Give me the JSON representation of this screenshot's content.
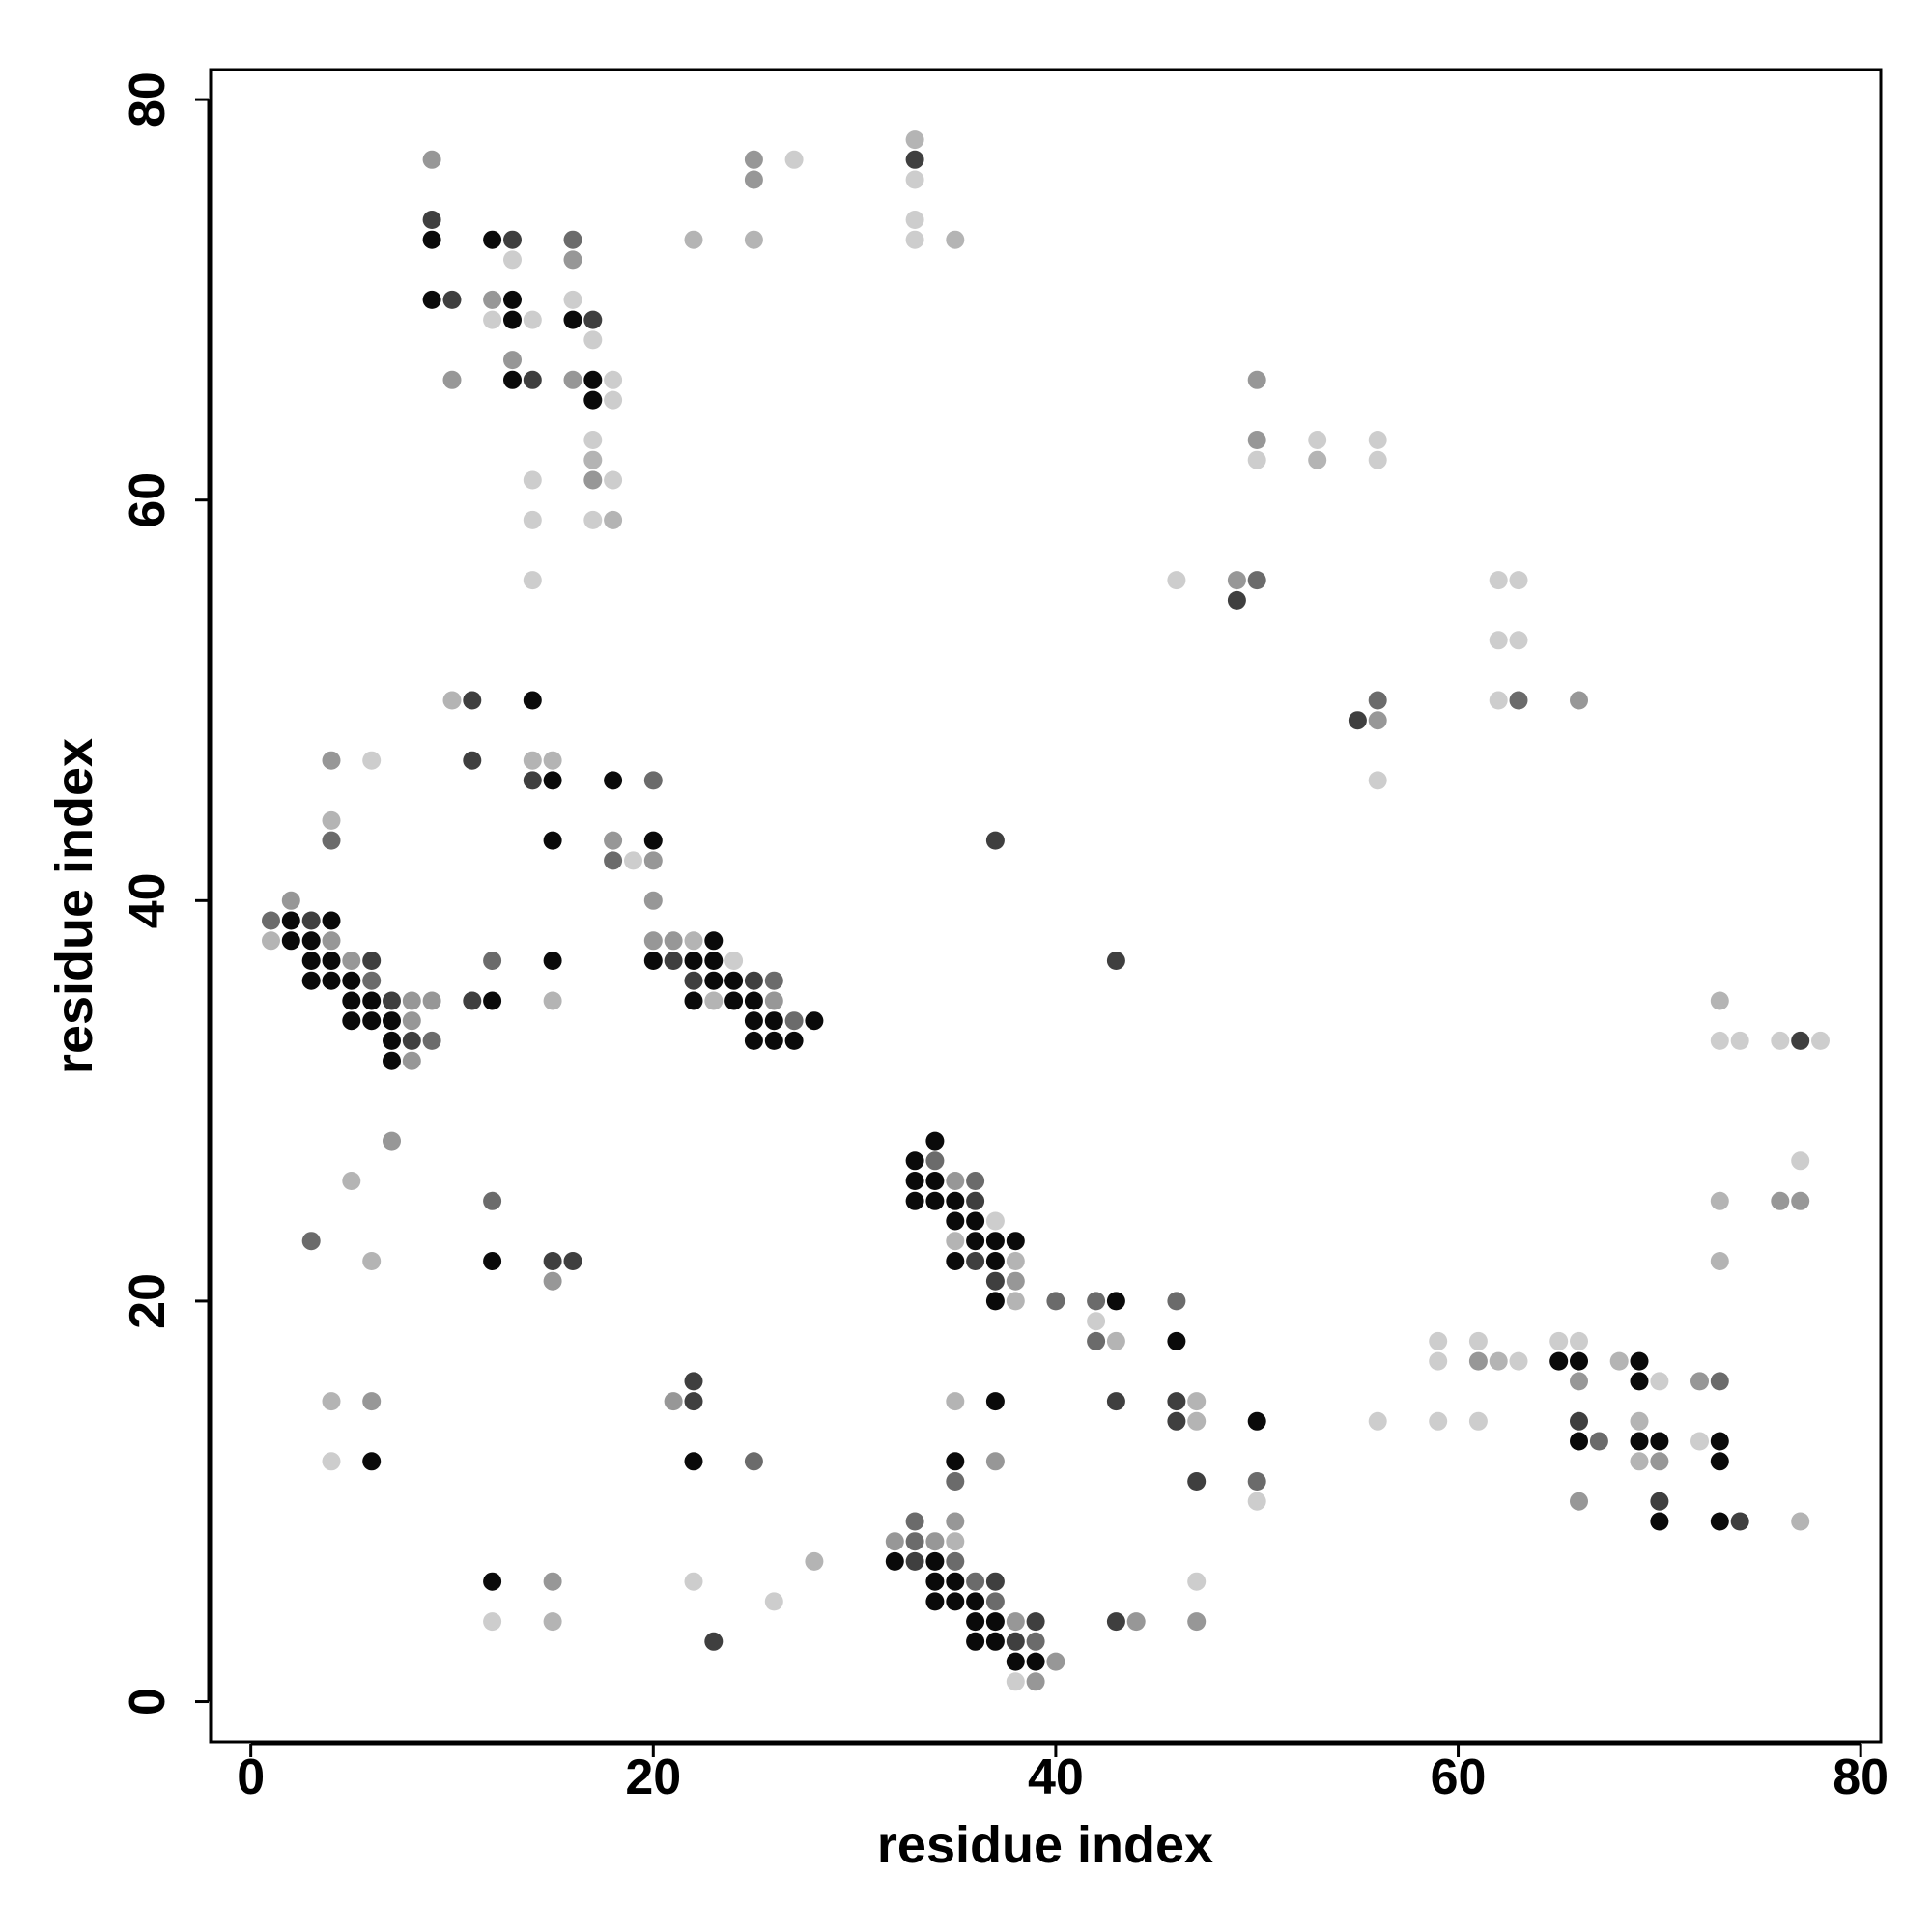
{
  "chart_data": {
    "type": "scatter",
    "title": "",
    "xlabel": "residue index",
    "ylabel": "residue index",
    "xlim": [
      -2,
      81
    ],
    "ylim": [
      -2,
      81.5
    ],
    "xticks": [
      "0",
      "20",
      "40",
      "60",
      "80"
    ],
    "yticks": [
      "0",
      "20",
      "40",
      "60",
      "80"
    ],
    "grid": false,
    "legend": "none",
    "colors": {
      "black": "#0a0a0a",
      "dark": "#3f3f3f",
      "mid": "#6b6b6b",
      "gray": "#979797",
      "light": "#b4b4b4",
      "lighter": "#cdcdcd"
    },
    "points": [
      [
        9,
        77,
        "gray"
      ],
      [
        9,
        74,
        "dark"
      ],
      [
        9,
        73,
        "black"
      ],
      [
        9,
        70,
        "black"
      ],
      [
        10,
        70,
        "dark"
      ],
      [
        10,
        66,
        "gray"
      ],
      [
        12,
        73,
        "black"
      ],
      [
        13,
        73,
        "dark"
      ],
      [
        13,
        72,
        "lighter"
      ],
      [
        12,
        70,
        "gray"
      ],
      [
        13,
        70,
        "black"
      ],
      [
        12,
        69,
        "lighter"
      ],
      [
        13,
        69,
        "black"
      ],
      [
        14,
        69,
        "lighter"
      ],
      [
        13,
        67,
        "gray"
      ],
      [
        13,
        66,
        "black"
      ],
      [
        14,
        66,
        "dark"
      ],
      [
        14,
        61,
        "lighter"
      ],
      [
        14,
        59,
        "lighter"
      ],
      [
        14,
        56,
        "lighter"
      ],
      [
        16,
        73,
        "mid"
      ],
      [
        16,
        72,
        "gray"
      ],
      [
        16,
        70,
        "lighter"
      ],
      [
        16,
        69,
        "black"
      ],
      [
        17,
        69,
        "dark"
      ],
      [
        17,
        68,
        "lighter"
      ],
      [
        16,
        66,
        "gray"
      ],
      [
        17,
        66,
        "black"
      ],
      [
        18,
        66,
        "lighter"
      ],
      [
        17,
        65,
        "black"
      ],
      [
        18,
        65,
        "lighter"
      ],
      [
        17,
        63,
        "lighter"
      ],
      [
        17,
        62,
        "light"
      ],
      [
        17,
        61,
        "gray"
      ],
      [
        18,
        61,
        "lighter"
      ],
      [
        17,
        59,
        "lighter"
      ],
      [
        18,
        59,
        "light"
      ],
      [
        25,
        77,
        "gray"
      ],
      [
        27,
        77,
        "lighter"
      ],
      [
        25,
        76,
        "gray"
      ],
      [
        22,
        73,
        "light"
      ],
      [
        25,
        73,
        "light"
      ],
      [
        33,
        78,
        "light"
      ],
      [
        33,
        77,
        "dark"
      ],
      [
        33,
        76,
        "lighter"
      ],
      [
        33,
        74,
        "lighter"
      ],
      [
        33,
        73,
        "lighter"
      ],
      [
        35,
        73,
        "light"
      ],
      [
        50,
        66,
        "gray"
      ],
      [
        50,
        63,
        "gray"
      ],
      [
        53,
        63,
        "lighter"
      ],
      [
        56,
        63,
        "lighter"
      ],
      [
        50,
        62,
        "lighter"
      ],
      [
        53,
        62,
        "light"
      ],
      [
        56,
        62,
        "lighter"
      ],
      [
        46,
        56,
        "lighter"
      ],
      [
        49,
        56,
        "gray"
      ],
      [
        50,
        56,
        "mid"
      ],
      [
        49,
        55,
        "dark"
      ],
      [
        62,
        56,
        "lighter"
      ],
      [
        63,
        56,
        "lighter"
      ],
      [
        62,
        53,
        "lighter"
      ],
      [
        63,
        53,
        "lighter"
      ],
      [
        62,
        50,
        "lighter"
      ],
      [
        63,
        50,
        "mid"
      ],
      [
        66,
        50,
        "gray"
      ],
      [
        55,
        49,
        "dark"
      ],
      [
        56,
        49,
        "gray"
      ],
      [
        56,
        50,
        "mid"
      ],
      [
        56,
        46,
        "lighter"
      ],
      [
        10,
        50,
        "light"
      ],
      [
        11,
        50,
        "dark"
      ],
      [
        14,
        50,
        "black"
      ],
      [
        11,
        47,
        "dark"
      ],
      [
        14,
        47,
        "light"
      ],
      [
        15,
        47,
        "light"
      ],
      [
        14,
        46,
        "dark"
      ],
      [
        15,
        46,
        "black"
      ],
      [
        15,
        43,
        "black"
      ],
      [
        18,
        46,
        "black"
      ],
      [
        20,
        46,
        "mid"
      ],
      [
        18,
        43,
        "gray"
      ],
      [
        20,
        43,
        "black"
      ],
      [
        18,
        42,
        "mid"
      ],
      [
        19,
        42,
        "lighter"
      ],
      [
        20,
        42,
        "gray"
      ],
      [
        20,
        40,
        "gray"
      ],
      [
        37,
        43,
        "dark"
      ],
      [
        4,
        47,
        "gray"
      ],
      [
        6,
        47,
        "lighter"
      ],
      [
        4,
        44,
        "light"
      ],
      [
        4,
        43,
        "mid"
      ],
      [
        2,
        40,
        "gray"
      ],
      [
        1,
        39,
        "mid"
      ],
      [
        2,
        39,
        "black"
      ],
      [
        3,
        39,
        "dark"
      ],
      [
        4,
        39,
        "black"
      ],
      [
        1,
        38,
        "light"
      ],
      [
        2,
        38,
        "black"
      ],
      [
        3,
        38,
        "black"
      ],
      [
        4,
        38,
        "gray"
      ],
      [
        3,
        37,
        "black"
      ],
      [
        4,
        37,
        "black"
      ],
      [
        5,
        37,
        "gray"
      ],
      [
        6,
        37,
        "dark"
      ],
      [
        3,
        36,
        "black"
      ],
      [
        4,
        36,
        "black"
      ],
      [
        5,
        36,
        "black"
      ],
      [
        6,
        36,
        "mid"
      ],
      [
        5,
        35,
        "black"
      ],
      [
        6,
        35,
        "black"
      ],
      [
        7,
        35,
        "dark"
      ],
      [
        8,
        35,
        "gray"
      ],
      [
        9,
        35,
        "gray"
      ],
      [
        5,
        34,
        "black"
      ],
      [
        6,
        34,
        "black"
      ],
      [
        7,
        34,
        "black"
      ],
      [
        8,
        34,
        "gray"
      ],
      [
        7,
        33,
        "black"
      ],
      [
        8,
        33,
        "dark"
      ],
      [
        9,
        33,
        "mid"
      ],
      [
        7,
        32,
        "black"
      ],
      [
        8,
        32,
        "gray"
      ],
      [
        12,
        37,
        "mid"
      ],
      [
        11,
        35,
        "dark"
      ],
      [
        12,
        35,
        "black"
      ],
      [
        15,
        37,
        "black"
      ],
      [
        15,
        35,
        "light"
      ],
      [
        20,
        38,
        "gray"
      ],
      [
        21,
        38,
        "gray"
      ],
      [
        22,
        38,
        "light"
      ],
      [
        23,
        38,
        "black"
      ],
      [
        20,
        37,
        "black"
      ],
      [
        21,
        37,
        "dark"
      ],
      [
        22,
        37,
        "black"
      ],
      [
        23,
        37,
        "black"
      ],
      [
        24,
        37,
        "lighter"
      ],
      [
        22,
        36,
        "dark"
      ],
      [
        23,
        36,
        "black"
      ],
      [
        24,
        36,
        "black"
      ],
      [
        25,
        36,
        "dark"
      ],
      [
        26,
        36,
        "mid"
      ],
      [
        22,
        35,
        "black"
      ],
      [
        23,
        35,
        "light"
      ],
      [
        24,
        35,
        "black"
      ],
      [
        25,
        35,
        "black"
      ],
      [
        26,
        35,
        "gray"
      ],
      [
        25,
        34,
        "black"
      ],
      [
        26,
        34,
        "black"
      ],
      [
        27,
        34,
        "mid"
      ],
      [
        28,
        34,
        "black"
      ],
      [
        25,
        33,
        "black"
      ],
      [
        26,
        33,
        "black"
      ],
      [
        27,
        33,
        "black"
      ],
      [
        7,
        28,
        "gray"
      ],
      [
        5,
        26,
        "light"
      ],
      [
        3,
        23,
        "mid"
      ],
      [
        6,
        22,
        "light"
      ],
      [
        12,
        25,
        "mid"
      ],
      [
        12,
        22,
        "black"
      ],
      [
        15,
        22,
        "dark"
      ],
      [
        16,
        22,
        "dark"
      ],
      [
        15,
        21,
        "gray"
      ],
      [
        34,
        28,
        "black"
      ],
      [
        33,
        27,
        "black"
      ],
      [
        34,
        27,
        "mid"
      ],
      [
        33,
        26,
        "black"
      ],
      [
        34,
        26,
        "black"
      ],
      [
        35,
        26,
        "gray"
      ],
      [
        36,
        26,
        "mid"
      ],
      [
        33,
        25,
        "black"
      ],
      [
        34,
        25,
        "black"
      ],
      [
        35,
        25,
        "black"
      ],
      [
        36,
        25,
        "dark"
      ],
      [
        35,
        24,
        "black"
      ],
      [
        36,
        24,
        "black"
      ],
      [
        37,
        24,
        "lighter"
      ],
      [
        35,
        23,
        "light"
      ],
      [
        36,
        23,
        "black"
      ],
      [
        37,
        23,
        "black"
      ],
      [
        38,
        23,
        "black"
      ],
      [
        35,
        22,
        "black"
      ],
      [
        36,
        22,
        "dark"
      ],
      [
        37,
        22,
        "black"
      ],
      [
        38,
        22,
        "light"
      ],
      [
        37,
        21,
        "dark"
      ],
      [
        38,
        21,
        "gray"
      ],
      [
        37,
        20,
        "black"
      ],
      [
        38,
        20,
        "light"
      ],
      [
        40,
        20,
        "mid"
      ],
      [
        42,
        20,
        "mid"
      ],
      [
        43,
        20,
        "black"
      ],
      [
        42,
        19,
        "lighter"
      ],
      [
        42,
        18,
        "mid"
      ],
      [
        43,
        18,
        "light"
      ],
      [
        46,
        20,
        "mid"
      ],
      [
        46,
        18,
        "black"
      ],
      [
        43,
        37,
        "dark"
      ],
      [
        4,
        15,
        "light"
      ],
      [
        6,
        15,
        "gray"
      ],
      [
        4,
        12,
        "lighter"
      ],
      [
        6,
        12,
        "black"
      ],
      [
        22,
        16,
        "dark"
      ],
      [
        21,
        15,
        "gray"
      ],
      [
        22,
        15,
        "dark"
      ],
      [
        22,
        12,
        "black"
      ],
      [
        25,
        12,
        "mid"
      ],
      [
        12,
        6,
        "black"
      ],
      [
        15,
        6,
        "gray"
      ],
      [
        12,
        4,
        "lighter"
      ],
      [
        15,
        4,
        "light"
      ],
      [
        22,
        6,
        "lighter"
      ],
      [
        26,
        5,
        "lighter"
      ],
      [
        28,
        7,
        "light"
      ],
      [
        23,
        3,
        "dark"
      ],
      [
        35,
        15,
        "light"
      ],
      [
        37,
        15,
        "black"
      ],
      [
        35,
        12,
        "black"
      ],
      [
        37,
        12,
        "gray"
      ],
      [
        35,
        11,
        "mid"
      ],
      [
        43,
        15,
        "dark"
      ],
      [
        46,
        15,
        "dark"
      ],
      [
        47,
        15,
        "light"
      ],
      [
        46,
        14,
        "dark"
      ],
      [
        47,
        14,
        "light"
      ],
      [
        47,
        11,
        "dark"
      ],
      [
        50,
        14,
        "black"
      ],
      [
        50,
        11,
        "mid"
      ],
      [
        50,
        10,
        "lighter"
      ],
      [
        33,
        9,
        "mid"
      ],
      [
        35,
        9,
        "gray"
      ],
      [
        32,
        8,
        "gray"
      ],
      [
        33,
        8,
        "mid"
      ],
      [
        34,
        8,
        "gray"
      ],
      [
        35,
        8,
        "light"
      ],
      [
        32,
        7,
        "black"
      ],
      [
        33,
        7,
        "dark"
      ],
      [
        34,
        7,
        "black"
      ],
      [
        35,
        7,
        "mid"
      ],
      [
        34,
        6,
        "black"
      ],
      [
        35,
        6,
        "black"
      ],
      [
        36,
        6,
        "mid"
      ],
      [
        37,
        6,
        "dark"
      ],
      [
        34,
        5,
        "black"
      ],
      [
        35,
        5,
        "black"
      ],
      [
        36,
        5,
        "black"
      ],
      [
        37,
        5,
        "mid"
      ],
      [
        36,
        4,
        "black"
      ],
      [
        37,
        4,
        "black"
      ],
      [
        38,
        4,
        "gray"
      ],
      [
        39,
        4,
        "dark"
      ],
      [
        36,
        3,
        "black"
      ],
      [
        37,
        3,
        "black"
      ],
      [
        38,
        3,
        "dark"
      ],
      [
        39,
        3,
        "mid"
      ],
      [
        38,
        2,
        "black"
      ],
      [
        39,
        2,
        "black"
      ],
      [
        40,
        2,
        "gray"
      ],
      [
        38,
        1,
        "lighter"
      ],
      [
        39,
        1,
        "gray"
      ],
      [
        43,
        4,
        "dark"
      ],
      [
        44,
        4,
        "gray"
      ],
      [
        47,
        6,
        "lighter"
      ],
      [
        47,
        4,
        "gray"
      ],
      [
        56,
        14,
        "lighter"
      ],
      [
        59,
        18,
        "lighter"
      ],
      [
        61,
        18,
        "lighter"
      ],
      [
        59,
        17,
        "lighter"
      ],
      [
        61,
        17,
        "gray"
      ],
      [
        62,
        17,
        "light"
      ],
      [
        63,
        17,
        "lighter"
      ],
      [
        59,
        14,
        "lighter"
      ],
      [
        61,
        14,
        "lighter"
      ],
      [
        65,
        18,
        "lighter"
      ],
      [
        66,
        18,
        "lighter"
      ],
      [
        65,
        17,
        "black"
      ],
      [
        66,
        17,
        "black"
      ],
      [
        66,
        16,
        "gray"
      ],
      [
        66,
        14,
        "dark"
      ],
      [
        66,
        13,
        "black"
      ],
      [
        67,
        13,
        "mid"
      ],
      [
        66,
        10,
        "gray"
      ],
      [
        68,
        17,
        "light"
      ],
      [
        69,
        17,
        "black"
      ],
      [
        69,
        16,
        "black"
      ],
      [
        70,
        16,
        "lighter"
      ],
      [
        69,
        14,
        "light"
      ],
      [
        69,
        13,
        "black"
      ],
      [
        70,
        13,
        "black"
      ],
      [
        69,
        12,
        "light"
      ],
      [
        70,
        12,
        "gray"
      ],
      [
        70,
        10,
        "dark"
      ],
      [
        70,
        9,
        "black"
      ],
      [
        72,
        16,
        "gray"
      ],
      [
        73,
        16,
        "mid"
      ],
      [
        72,
        13,
        "lighter"
      ],
      [
        73,
        13,
        "black"
      ],
      [
        73,
        12,
        "black"
      ],
      [
        73,
        9,
        "black"
      ],
      [
        74,
        9,
        "dark"
      ],
      [
        77,
        9,
        "light"
      ],
      [
        73,
        35,
        "light"
      ],
      [
        73,
        33,
        "lighter"
      ],
      [
        74,
        33,
        "lighter"
      ],
      [
        76,
        33,
        "lighter"
      ],
      [
        77,
        33,
        "dark"
      ],
      [
        78,
        33,
        "lighter"
      ],
      [
        77,
        27,
        "lighter"
      ],
      [
        76,
        25,
        "gray"
      ],
      [
        77,
        25,
        "gray"
      ],
      [
        73,
        25,
        "light"
      ],
      [
        73,
        22,
        "light"
      ]
    ]
  }
}
